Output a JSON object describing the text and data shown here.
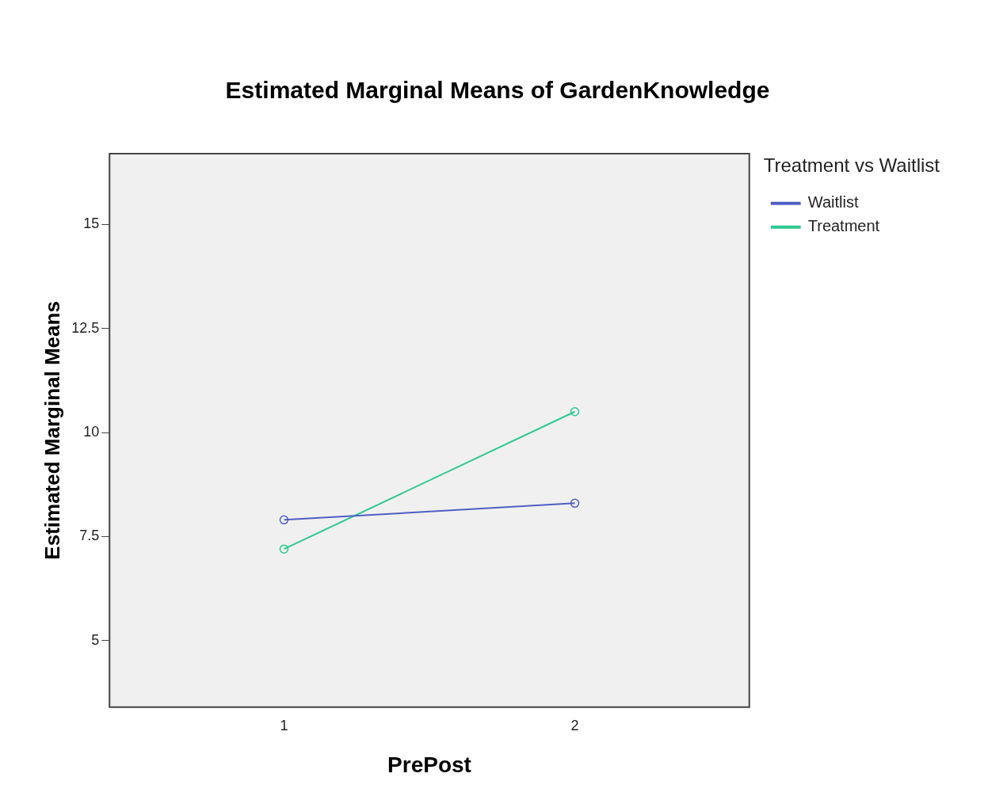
{
  "chart_data": {
    "type": "line",
    "title": "Estimated Marginal Means of GardenKnowledge",
    "xlabel": "PrePost",
    "ylabel": "Estimated Marginal Means",
    "legend_title": "Treatment vs Waitlist",
    "x": [
      1,
      2
    ],
    "series": [
      {
        "name": "Waitlist",
        "color": "#4f5fc4",
        "values": [
          7.9,
          8.3
        ]
      },
      {
        "name": "Treatment",
        "color": "#2ec88f",
        "values": [
          7.2,
          10.5
        ]
      }
    ],
    "xlim": [
      0.4,
      2.6
    ],
    "xticks": [
      1,
      2
    ],
    "ylim": [
      3.4,
      16.7
    ],
    "yticks": [
      5,
      7.5,
      10,
      12.5,
      15
    ],
    "grid": false,
    "legend": "top right",
    "marker": "circle",
    "line_style": "solid"
  }
}
